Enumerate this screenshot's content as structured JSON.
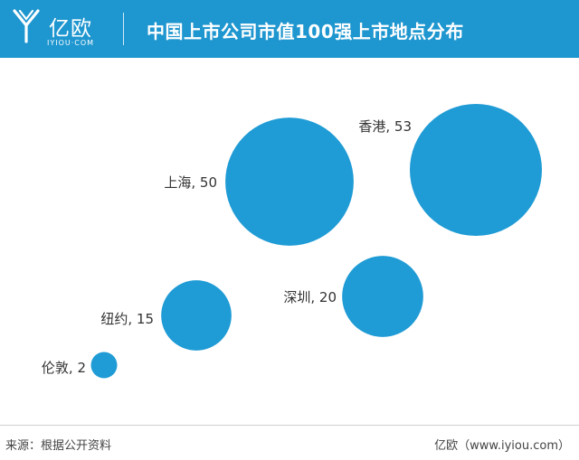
{
  "header": {
    "logo_text": "亿欧",
    "logo_subtext": "IYIOU·COM",
    "title": "中国上市公司市值100强上市地点分布"
  },
  "colors": {
    "header_bg": "#1e96cf",
    "bubble": "#1f9bd5"
  },
  "chart_data": {
    "type": "bubble",
    "points": [
      {
        "label": "上海, 50",
        "name": "上海",
        "value": 50
      },
      {
        "label": "香港, 53",
        "name": "香港",
        "value": 53
      },
      {
        "label": "深圳, 20",
        "name": "深圳",
        "value": 20
      },
      {
        "label": "纽约, 15",
        "name": "纽约",
        "value": 15
      },
      {
        "label": "伦敦, 2",
        "name": "伦敦",
        "value": 2
      }
    ]
  },
  "footer": {
    "source": "来源：根据公开资料",
    "site": "亿欧（www.iyiou.com）"
  }
}
